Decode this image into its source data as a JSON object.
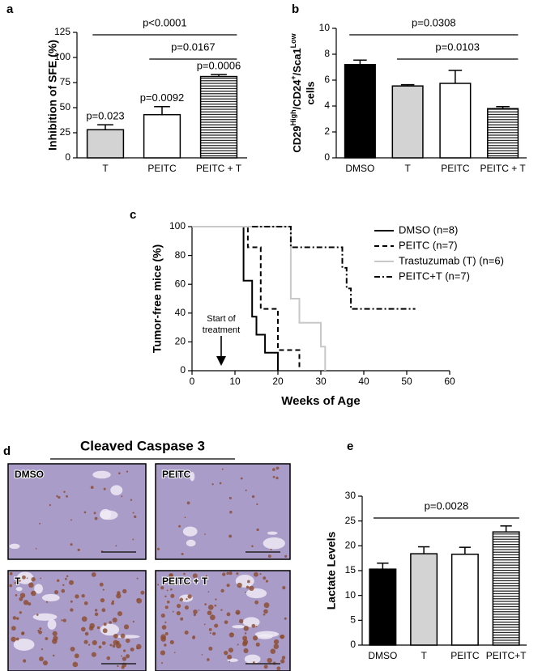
{
  "chart_data": [
    {
      "type": "bar",
      "panel": "a",
      "ylabel": "Inhibition of SFE (%)",
      "categories": [
        "T",
        "PEITC",
        "PEITC + T"
      ],
      "values": [
        28,
        43,
        81
      ],
      "errors": [
        5,
        8,
        2
      ],
      "fills": [
        "#d3d3d3",
        "#ffffff",
        "hatch"
      ],
      "annotations": [
        "p=0.023",
        "p=0.0092",
        "p=0.0006"
      ],
      "brackets": [
        {
          "from": "T",
          "to": "PEITC + T",
          "label": "p<0.0001"
        },
        {
          "from": "PEITC",
          "to": "PEITC + T",
          "label": "p=0.0167"
        }
      ],
      "ylim": [
        0,
        125
      ],
      "yticks": [
        0,
        25,
        50,
        75,
        100,
        125
      ]
    },
    {
      "type": "bar",
      "panel": "b",
      "ylabel": [
        "CD29",
        "High",
        "/CD24",
        "+",
        "/Sca1",
        "Low"
      ],
      "ylabel2": "cells",
      "categories": [
        "DMSO",
        "T",
        "PEITC",
        "PEITC + T"
      ],
      "values": [
        7.2,
        5.55,
        5.75,
        3.8
      ],
      "errors": [
        0.35,
        0.1,
        1.0,
        0.15
      ],
      "fills": [
        "#000000",
        "#d3d3d3",
        "#ffffff",
        "hatch"
      ],
      "brackets": [
        {
          "from": "DMSO",
          "to": "PEITC + T",
          "label": "p=0.0308"
        },
        {
          "from": "T",
          "to": "PEITC + T",
          "label": "p=0.0103"
        }
      ],
      "ylim": [
        0,
        10
      ],
      "yticks": [
        0,
        2,
        4,
        6,
        8,
        10
      ]
    },
    {
      "type": "line",
      "panel": "c",
      "xlabel": "Weeks of Age",
      "ylabel": "Tumor-free mice (%)",
      "annotation": [
        "Start of",
        "treatment"
      ],
      "series": [
        {
          "name": "DMSO (n=8)",
          "color": "#000000",
          "style": "solid",
          "x": [
            0,
            12,
            14,
            15,
            17,
            20
          ],
          "values": [
            100,
            62.5,
            37.5,
            25,
            12.5,
            0
          ]
        },
        {
          "name": "PEITC (n=7)",
          "color": "#000000",
          "style": "dashed",
          "x": [
            0,
            13,
            16,
            20,
            25
          ],
          "values": [
            100,
            85.7,
            42.9,
            14.3,
            0
          ]
        },
        {
          "name": "Trastuzumab (T) (n=6)",
          "color": "#c8c8c8",
          "style": "solid",
          "x": [
            0,
            23,
            25,
            30,
            31
          ],
          "values": [
            100,
            50,
            33.3,
            16.7,
            0
          ]
        },
        {
          "name": "PEITC+T (n=7)",
          "color": "#000000",
          "style": "dashdot",
          "x": [
            14,
            23,
            35,
            36,
            37,
            52
          ],
          "values": [
            100,
            85.7,
            71.4,
            57.1,
            42.9,
            42.9
          ]
        }
      ],
      "xlim": [
        0,
        60
      ],
      "xticks": [
        0,
        10,
        20,
        30,
        40,
        50,
        60
      ],
      "ylim": [
        0,
        100
      ],
      "yticks": [
        0,
        20,
        40,
        60,
        80,
        100
      ]
    },
    {
      "type": "bar",
      "panel": "e",
      "ylabel": "Lactate Levels",
      "categories": [
        "DMSO",
        "T",
        "PEITC",
        "PEITC+T"
      ],
      "values": [
        15.3,
        18.4,
        18.3,
        22.8
      ],
      "errors": [
        1.2,
        1.4,
        1.4,
        1.2
      ],
      "fills": [
        "#000000",
        "#d3d3d3",
        "#ffffff",
        "hatch"
      ],
      "brackets": [
        {
          "from": "DMSO",
          "to": "PEITC+T",
          "label": "p=0.0028"
        }
      ],
      "ylim": [
        0,
        30
      ],
      "yticks": [
        0,
        5,
        10,
        15,
        20,
        25,
        30
      ]
    }
  ],
  "panel_d": {
    "panel": "d",
    "title": "Cleaved Caspase 3",
    "images": [
      "DMSO",
      "PEITC",
      "T",
      "PEITC + T"
    ]
  }
}
